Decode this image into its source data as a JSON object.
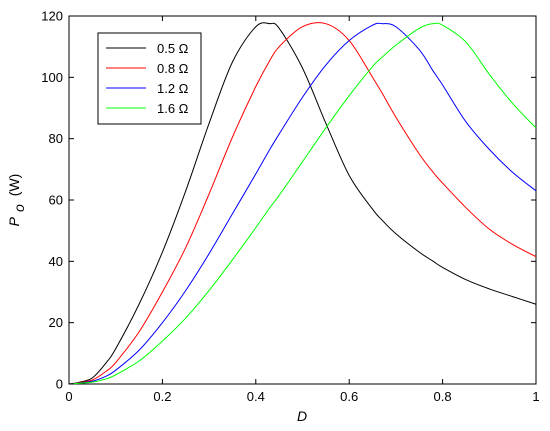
{
  "chart_data": {
    "type": "line",
    "title": "",
    "xlabel": "D",
    "ylabel": {
      "symbol": "P",
      "subscript": "o",
      "unit": "(W)"
    },
    "xlim": [
      0,
      1
    ],
    "ylim": [
      0,
      120
    ],
    "xticks": [
      "0",
      "0.2",
      "0.4",
      "0.6",
      "0.8",
      "1"
    ],
    "yticks": [
      "0",
      "20",
      "40",
      "60",
      "80",
      "100",
      "120"
    ],
    "grid": false,
    "legend_position": "top-left",
    "peak_power": 117.5,
    "x": [
      0,
      0.02,
      0.05,
      0.08,
      0.1,
      0.15,
      0.2,
      0.25,
      0.3,
      0.35,
      0.4,
      0.43,
      0.45,
      0.5,
      0.55,
      0.6,
      0.65,
      0.67,
      0.7,
      0.75,
      0.78,
      0.8,
      0.85,
      0.9,
      0.95,
      1.0
    ],
    "series": [
      {
        "name": "0.5 Ω",
        "color": "#000000",
        "peak_d": 0.43,
        "values": [
          0,
          0.5,
          2.0,
          7.0,
          11.5,
          26.0,
          43.0,
          63.0,
          85.0,
          105.0,
          116.5,
          117.5,
          116.0,
          103.0,
          85.0,
          68.0,
          57.0,
          53.5,
          49.0,
          43.0,
          40.0,
          38.0,
          34.0,
          31.0,
          28.5,
          26.0
        ]
      },
      {
        "name": "0.8 Ω",
        "color": "#ff0000",
        "peak_d": 0.55,
        "values": [
          0,
          0.4,
          1.3,
          4.2,
          7.0,
          17.0,
          30.0,
          44.5,
          62.0,
          80.5,
          97.0,
          105.5,
          110.0,
          116.5,
          117.5,
          112.0,
          100.0,
          95.0,
          87.0,
          75.0,
          69.0,
          65.5,
          57.5,
          50.5,
          45.5,
          41.5
        ]
      },
      {
        "name": "1.2 Ω",
        "color": "#0000ff",
        "peak_d": 0.67,
        "values": [
          0,
          0.3,
          0.9,
          2.6,
          4.5,
          11.0,
          20.0,
          30.5,
          42.5,
          55.5,
          68.5,
          76.5,
          81.5,
          93.5,
          104.0,
          112.0,
          117.0,
          117.5,
          116.5,
          109.0,
          102.0,
          97.5,
          85.5,
          76.5,
          69.0,
          63.0
        ]
      },
      {
        "name": "1.6 Ω",
        "color": "#00ff00",
        "peak_d": 0.78,
        "values": [
          0,
          0.2,
          0.6,
          1.7,
          3.0,
          7.5,
          14.0,
          21.5,
          30.5,
          40.5,
          51.0,
          57.5,
          61.5,
          72.5,
          83.5,
          94.0,
          103.5,
          106.5,
          110.5,
          116.0,
          117.5,
          117.0,
          111.5,
          101.0,
          91.5,
          83.5
        ]
      }
    ]
  }
}
